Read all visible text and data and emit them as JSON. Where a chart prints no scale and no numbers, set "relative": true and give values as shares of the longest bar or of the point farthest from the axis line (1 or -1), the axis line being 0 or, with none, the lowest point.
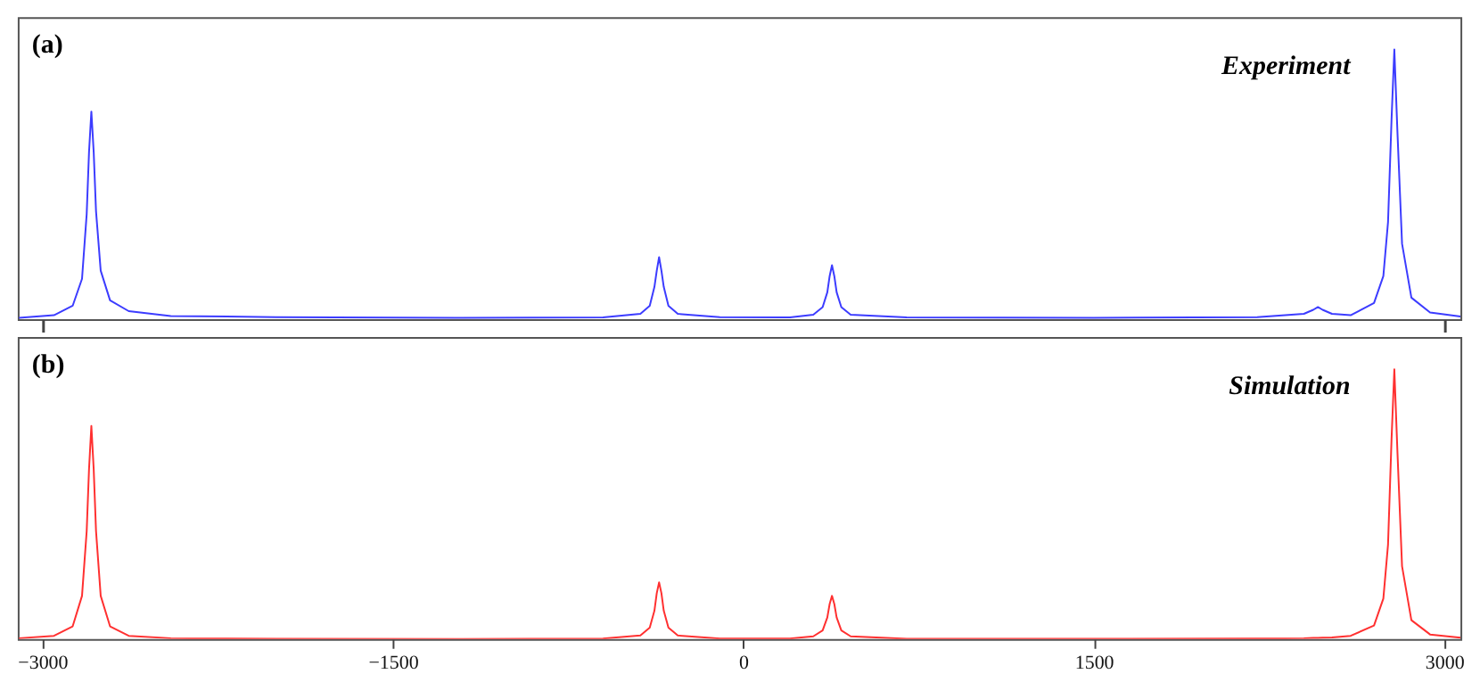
{
  "chart_data": [
    {
      "type": "line",
      "relative": true,
      "tick_labels": false,
      "grid": false,
      "annotations": [
        "(a)",
        "Experiment"
      ],
      "xlim": [
        -3105,
        3070
      ],
      "xticks": [
        {
          "value": -3000,
          "label": null
        },
        {
          "value": 3000,
          "label": null
        }
      ],
      "x": [
        -3100,
        -2950,
        -2870,
        -2830,
        -2810,
        -2800,
        -2790,
        -2780,
        -2770,
        -2750,
        -2710,
        -2630,
        -2450,
        -2000,
        -1200,
        -600,
        -440,
        -400,
        -380,
        -370,
        -360,
        -350,
        -340,
        -320,
        -280,
        -100,
        200,
        300,
        340,
        360,
        370,
        380,
        390,
        400,
        420,
        460,
        700,
        1500,
        2200,
        2400,
        2440,
        2460,
        2480,
        2520,
        2600,
        2700,
        2740,
        2760,
        2775,
        2787,
        2800,
        2820,
        2860,
        2940,
        3070
      ],
      "series": [
        {
          "color": "#3c3cff",
          "values": [
            0.005,
            0.015,
            0.05,
            0.15,
            0.39,
            0.62,
            0.77,
            0.62,
            0.4,
            0.18,
            0.07,
            0.03,
            0.012,
            0.008,
            0.005,
            0.007,
            0.02,
            0.05,
            0.12,
            0.18,
            0.23,
            0.18,
            0.12,
            0.05,
            0.02,
            0.008,
            0.007,
            0.017,
            0.045,
            0.1,
            0.16,
            0.2,
            0.16,
            0.1,
            0.045,
            0.017,
            0.007,
            0.005,
            0.008,
            0.02,
            0.035,
            0.045,
            0.035,
            0.02,
            0.015,
            0.06,
            0.16,
            0.36,
            0.74,
            1,
            0.7,
            0.28,
            0.08,
            0.025,
            0.01
          ]
        }
      ]
    },
    {
      "type": "line",
      "relative": true,
      "tick_labels": "x",
      "grid": false,
      "annotations": [
        "(b)",
        "Simulation"
      ],
      "xlim": [
        -3105,
        3070
      ],
      "xticks": [
        {
          "value": -3000,
          "label": "−3000"
        },
        {
          "value": -1500,
          "label": "−1500"
        },
        0,
        1500,
        3000
      ],
      "x": [
        -3100,
        -2950,
        -2870,
        -2830,
        -2810,
        -2800,
        -2790,
        -2780,
        -2770,
        -2750,
        -2710,
        -2630,
        -2450,
        -2000,
        -1200,
        -600,
        -440,
        -400,
        -380,
        -370,
        -360,
        -350,
        -340,
        -320,
        -280,
        -100,
        200,
        300,
        340,
        360,
        370,
        380,
        390,
        400,
        420,
        460,
        700,
        1500,
        2200,
        2400,
        2440,
        2460,
        2480,
        2520,
        2600,
        2700,
        2740,
        2760,
        2775,
        2787,
        2800,
        2820,
        2860,
        2940,
        3070
      ],
      "series": [
        {
          "color": "#ff3030",
          "values": [
            0.003,
            0.012,
            0.047,
            0.16,
            0.4,
            0.63,
            0.79,
            0.63,
            0.4,
            0.16,
            0.047,
            0.012,
            0.003,
            0.001,
            0,
            0.002,
            0.013,
            0.042,
            0.105,
            0.17,
            0.21,
            0.17,
            0.105,
            0.042,
            0.013,
            0.002,
            0.002,
            0.01,
            0.032,
            0.08,
            0.13,
            0.16,
            0.13,
            0.08,
            0.032,
            0.01,
            0.001,
            0.001,
            0.002,
            0.003,
            0.004,
            0.004,
            0.005,
            0.006,
            0.012,
            0.05,
            0.15,
            0.35,
            0.74,
            1,
            0.7,
            0.27,
            0.07,
            0.017,
            0.005
          ]
        }
      ]
    }
  ]
}
